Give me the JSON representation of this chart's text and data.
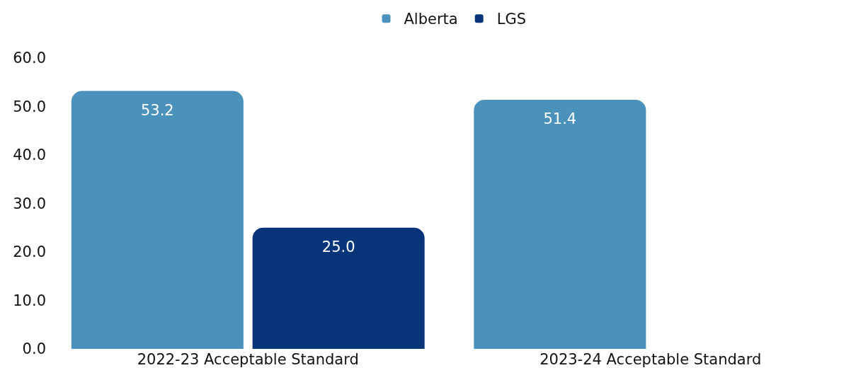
{
  "chart_data": {
    "type": "bar",
    "categories": [
      "2022-23 Acceptable Standard",
      "2023-24 Acceptable Standard"
    ],
    "series": [
      {
        "name": "Alberta",
        "color": "#4a92bc",
        "values": [
          53.2,
          51.4
        ],
        "value_labels": [
          "53.2",
          "51.4"
        ]
      },
      {
        "name": "LGS",
        "color": "#08357a",
        "values": [
          25.0,
          null
        ],
        "value_labels": [
          "25.0",
          null
        ]
      }
    ],
    "ylim": [
      0,
      60
    ],
    "yticks": [
      {
        "value": 0,
        "label": "0.0"
      },
      {
        "value": 10,
        "label": "10.0"
      },
      {
        "value": 20,
        "label": "20.0"
      },
      {
        "value": 30,
        "label": "30.0"
      },
      {
        "value": 40,
        "label": "40.0"
      },
      {
        "value": 50,
        "label": "50.0"
      },
      {
        "value": 60,
        "label": "60.0"
      }
    ],
    "legend": "top"
  }
}
